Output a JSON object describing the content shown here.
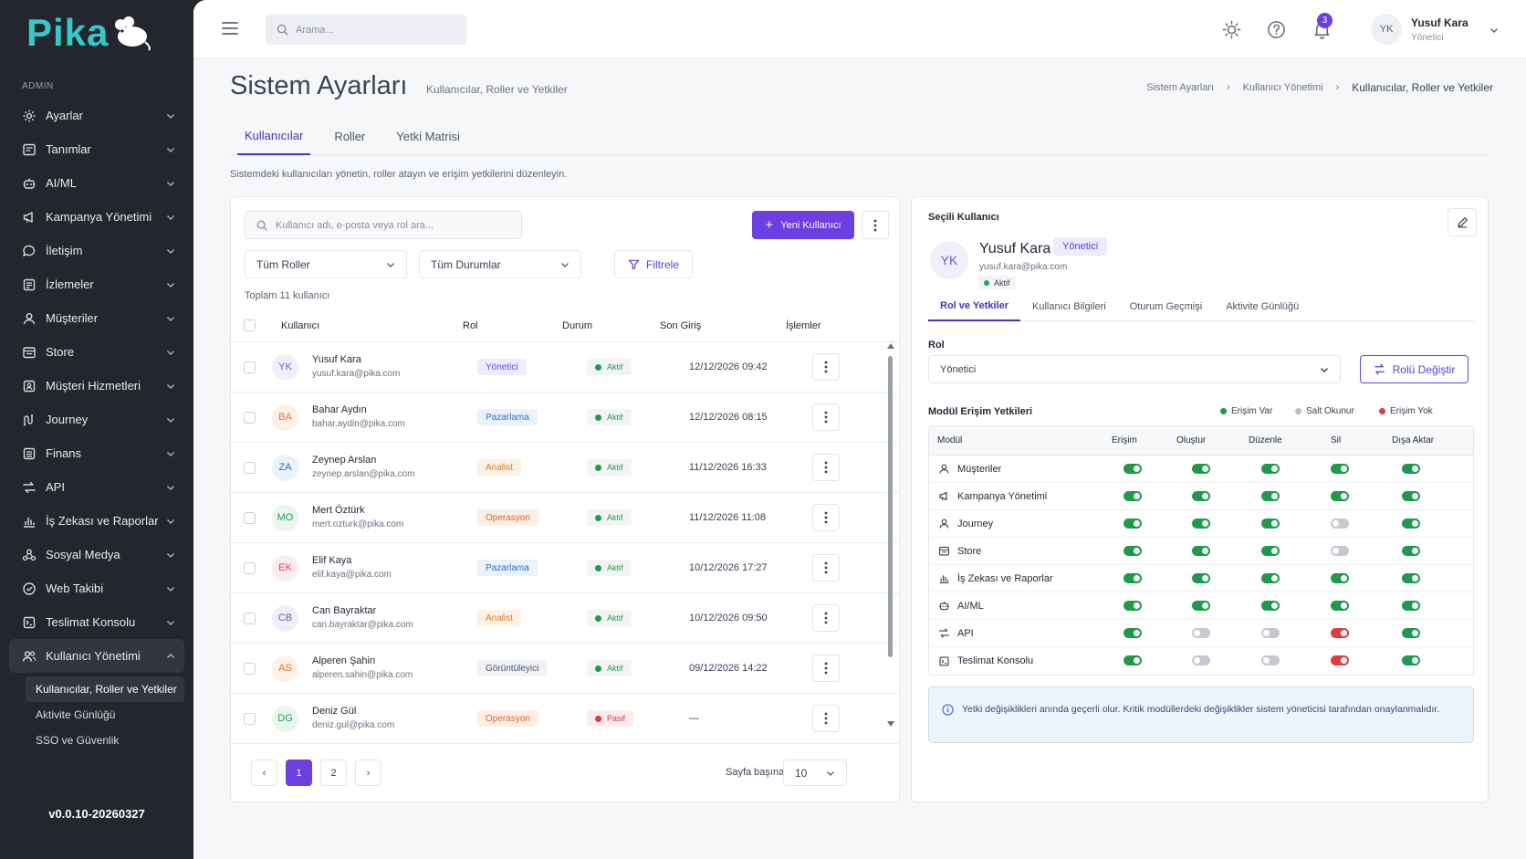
{
  "app": {
    "logo_text": "Pika",
    "version": "v0.0.10-20260327"
  },
  "sidebar": {
    "section_label": "ADMIN",
    "items": [
      {
        "label": "Ayarlar",
        "icon": "gear-icon"
      },
      {
        "label": "Tanımlar",
        "icon": "list-icon"
      },
      {
        "label": "AI/ML",
        "icon": "robot-icon"
      },
      {
        "label": "Kampanya Yönetimi",
        "icon": "megaphone-icon"
      },
      {
        "label": "İletişim",
        "icon": "chat-icon"
      },
      {
        "label": "İzlemeler",
        "icon": "clipboard-icon"
      },
      {
        "label": "Müşteriler",
        "icon": "user-icon"
      },
      {
        "label": "Store",
        "icon": "store-icon"
      },
      {
        "label": "Müşteri Hizmetleri",
        "icon": "support-icon"
      },
      {
        "label": "Journey",
        "icon": "journey-icon"
      },
      {
        "label": "Finans",
        "icon": "finance-icon"
      },
      {
        "label": "API",
        "icon": "swap-icon"
      },
      {
        "label": "İş Zekası ve Raporlar",
        "icon": "bar-chart-icon"
      },
      {
        "label": "Sosyal Medya",
        "icon": "social-icon"
      },
      {
        "label": "Web Takibi",
        "icon": "web-icon"
      },
      {
        "label": "Teslimat Konsolu",
        "icon": "delivery-icon"
      },
      {
        "label": "Kullanıcı Yönetimi",
        "icon": "users-icon"
      }
    ],
    "subitems": [
      "Kullanıcılar, Roller ve Yetkiler",
      "Aktivite Günlüğü",
      "SSO ve Güvenlik"
    ]
  },
  "topbar": {
    "search_placeholder": "Arama...",
    "notification_count": "3",
    "user": {
      "initials": "YK",
      "name": "Yusuf Kara",
      "role": "Yönetici"
    }
  },
  "page": {
    "title": "Sistem Ayarları",
    "subtitle": "Kullanıcılar, Roller ve Yetkiler",
    "breadcrumb": [
      "Sistem Ayarları",
      "Kullanıcı Yönetimi",
      "Kullanıcılar, Roller ve Yetkiler"
    ],
    "tabs": [
      "Kullanıcılar",
      "Roller",
      "Yetki Matrisi"
    ],
    "description": "Sistemdeki kullanıcıları yönetin, roller atayın ve erişim yetkilerini düzenleyin."
  },
  "users_panel": {
    "search_placeholder": "Kullanıcı adı, e-posta veya rol ara...",
    "new_user_label": "Yeni Kullanıcı",
    "role_filter": "Tüm Roller",
    "status_filter": "Tüm Durumlar",
    "filter_label": "Filtrele",
    "total_label": "Toplam 11 kullanıcı",
    "columns": [
      "Kullanıcı",
      "Rol",
      "Durum",
      "Son Giriş",
      "İşlemler"
    ],
    "rows": [
      {
        "initials": "YK",
        "name": "Yusuf Kara",
        "email": "yusuf.kara@pika.com",
        "role": "Yönetici",
        "status": "Aktif",
        "last_login": "12/12/2026 09:42"
      },
      {
        "initials": "BA",
        "name": "Bahar Aydın",
        "email": "bahar.aydin@pika.com",
        "role": "Pazarlama",
        "status": "Aktif",
        "last_login": "12/12/2026 08:15"
      },
      {
        "initials": "ZA",
        "name": "Zeynep Arslan",
        "email": "zeynep.arslan@pika.com",
        "role": "Analist",
        "status": "Aktif",
        "last_login": "11/12/2026 16:33"
      },
      {
        "initials": "MO",
        "name": "Mert Öztürk",
        "email": "mert.ozturk@pika.com",
        "role": "Operasyon",
        "status": "Aktif",
        "last_login": "11/12/2026 11:08"
      },
      {
        "initials": "EK",
        "name": "Elif Kaya",
        "email": "elif.kaya@pika.com",
        "role": "Pazarlama",
        "status": "Aktif",
        "last_login": "10/12/2026 17:27"
      },
      {
        "initials": "CB",
        "name": "Can Bayraktar",
        "email": "can.bayraktar@pika.com",
        "role": "Analist",
        "status": "Aktif",
        "last_login": "10/12/2026 09:50"
      },
      {
        "initials": "AS",
        "name": "Alperen Şahin",
        "email": "alperen.sahin@pika.com",
        "role": "Görüntüleyici",
        "status": "Aktif",
        "last_login": "09/12/2026 14:22"
      },
      {
        "initials": "DG",
        "name": "Deniz Gül",
        "email": "deniz.gul@pika.com",
        "role": "Operasyon",
        "status": "Pasif",
        "last_login": "—"
      }
    ],
    "pages": [
      "1",
      "2"
    ],
    "per_page_label": "Sayfa başına:",
    "per_page_value": "10"
  },
  "detail_panel": {
    "title": "Seçili Kullanıcı",
    "user": {
      "initials": "YK",
      "name": "Yusuf Kara",
      "role": "Yönetici",
      "email": "yusuf.kara@pika.com",
      "status": "Aktif"
    },
    "tabs": [
      "Rol ve Yetkiler",
      "Kullanıcı Bilgileri",
      "Oturum Geçmişi",
      "Aktivite Günlüğü"
    ],
    "role_label": "Rol",
    "role_value": "Yönetici",
    "change_role_label": "Rolü Değiştir",
    "permissions_title": "Modül Erişim Yetkileri",
    "legend": [
      {
        "label": "Erişim Var",
        "color": "#1f9a4a"
      },
      {
        "label": "Salt Okunur",
        "color": "#b8bcc3"
      },
      {
        "label": "Erişim Yok",
        "color": "#e23b3b"
      }
    ],
    "columns": [
      "Modül",
      "Erişim",
      "Oluştur",
      "Düzenle",
      "Sil",
      "Dışa Aktar"
    ],
    "modules": [
      {
        "name": "Müşteriler",
        "icon": "user-icon",
        "perms": [
          "on",
          "on",
          "on",
          "on",
          "on"
        ]
      },
      {
        "name": "Kampanya Yönetimi",
        "icon": "megaphone-icon",
        "perms": [
          "on",
          "on",
          "on",
          "on",
          "on"
        ]
      },
      {
        "name": "Journey",
        "icon": "user-icon",
        "perms": [
          "on",
          "on",
          "on",
          "off",
          "on"
        ]
      },
      {
        "name": "Store",
        "icon": "store-icon",
        "perms": [
          "on",
          "on",
          "on",
          "off",
          "on"
        ]
      },
      {
        "name": "İş Zekası ve Raporlar",
        "icon": "bar-chart-icon",
        "perms": [
          "on",
          "on",
          "on",
          "on",
          "on"
        ]
      },
      {
        "name": "AI/ML",
        "icon": "robot-icon",
        "perms": [
          "on",
          "on",
          "on",
          "on",
          "on"
        ]
      },
      {
        "name": "API",
        "icon": "swap-icon",
        "perms": [
          "on",
          "off",
          "off",
          "no",
          "on"
        ]
      },
      {
        "name": "Teslimat Konsolu",
        "icon": "delivery-icon",
        "perms": [
          "on",
          "off",
          "off",
          "no",
          "on"
        ]
      }
    ],
    "info_text": "Yetki değişiklikleri anında geçerli olur. Kritik modüllerdeki değişiklikler sistem yöneticisi tarafından onaylanmalıdır."
  },
  "colors": {
    "accent": "#6b3fe0",
    "brand": "#37c8c9",
    "success": "#1f9a4a",
    "danger": "#e23b3b"
  }
}
